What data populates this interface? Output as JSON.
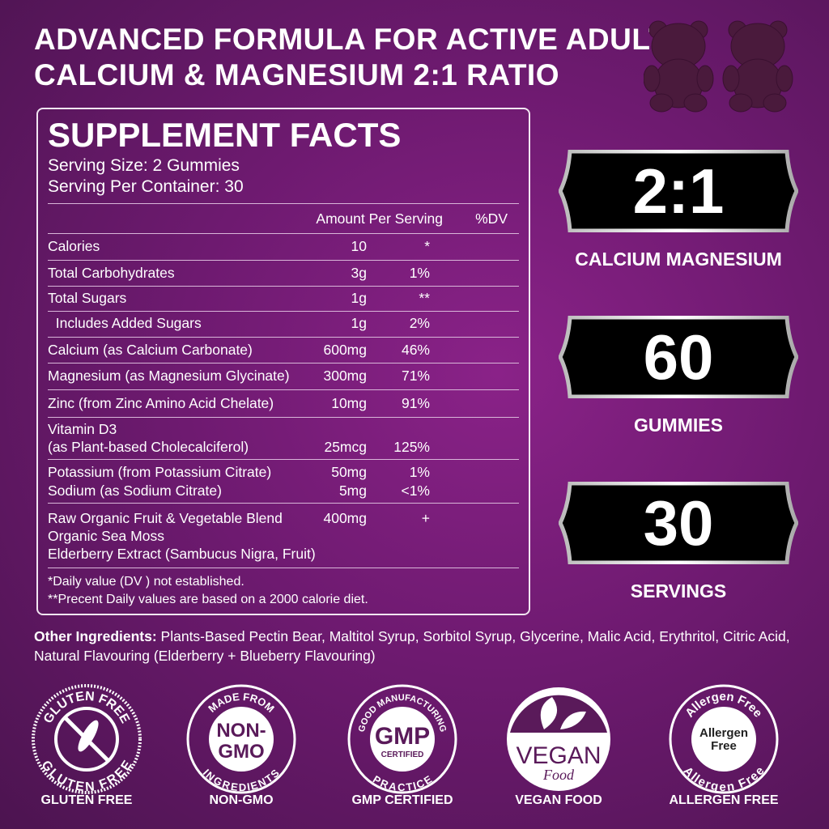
{
  "headline": [
    "ADVANCED FORMULA FOR ACTIVE ADULTS",
    "CALCIUM & MAGNESIUM 2:1 RATIO"
  ],
  "facts": {
    "title": "SUPPLEMENT FACTS",
    "serving_size": "Serving Size: 2 Gummies",
    "servings_per_container": "Serving Per Container: 30",
    "col_amount": "Amount Per Serving",
    "col_dv": "%DV",
    "rows": [
      {
        "name": "Calories",
        "amount": "10",
        "dv": "*"
      },
      {
        "name": "Total Carbohydrates",
        "amount": "3g",
        "dv": "1%"
      },
      {
        "name": "Total Sugars",
        "amount": "1g",
        "dv": "**"
      },
      {
        "name": "  Includes Added Sugars",
        "amount": "1g",
        "dv": "2%"
      },
      {
        "name": "Calcium (as Calcium Carbonate)",
        "amount": "600mg",
        "dv": "46%"
      },
      {
        "name": "Magnesium (as Magnesium Glycinate)",
        "amount": "300mg",
        "dv": "71%"
      },
      {
        "name": "Zinc (from Zinc Amino Acid Chelate)",
        "amount": "10mg",
        "dv": "91%"
      },
      {
        "name": "Vitamin D3",
        "amount": "",
        "dv": ""
      },
      {
        "name": "(as Plant-based Cholecalciferol)",
        "amount": "25mcg",
        "dv": "125%"
      },
      {
        "name": "Potassium (from Potassium Citrate)",
        "amount": "50mg",
        "dv": "1%"
      },
      {
        "name": "Sodium (as Sodium Citrate)",
        "amount": "5mg",
        "dv": "<1%"
      },
      {
        "name": "Raw Organic Fruit & Vegetable Blend",
        "amount": "400mg",
        "dv": "+"
      },
      {
        "name": "Organic Sea Moss",
        "amount": "",
        "dv": ""
      },
      {
        "name": "Elderberry Extract (Sambucus Nigra, Fruit)",
        "amount": "",
        "dv": ""
      }
    ],
    "footnotes": [
      "*Daily value (DV ) not established.",
      "**Precent Daily values are based  on a 2000 calorie diet."
    ]
  },
  "highlights": [
    {
      "value": "2:1",
      "label": "CALCIUM MAGNESIUM"
    },
    {
      "value": "60",
      "label": "GUMMIES"
    },
    {
      "value": "30",
      "label": "SERVINGS"
    }
  ],
  "other_ingredients": {
    "label": "Other Ingredients:",
    "text": " Plants-Based Pectin Bear, Maltitol Syrup, Sorbitol Syrup, Glycerine, Malic Acid, Erythritol, Citric Acid, Natural Flavouring (Elderberry + Blueberry Flavouring)"
  },
  "badges": [
    {
      "label": "GLUTEN FREE",
      "logo_text": [
        "GLUTEN FREE",
        "GLUTEN FREE"
      ]
    },
    {
      "label": "NON-GMO",
      "logo_text": [
        "MADE FROM",
        "INGREDIENTS",
        "NON-",
        "GMO"
      ]
    },
    {
      "label": "GMP CERTIFIED",
      "logo_text": [
        "GOOD MANUFACTURING",
        "PRACTICE",
        "GMP",
        "CERTIFIED"
      ]
    },
    {
      "label": "VEGAN FOOD",
      "logo_text": [
        "VEGAN",
        "Food"
      ]
    },
    {
      "label": "ALLERGEN FREE",
      "logo_text": [
        "Allergen Free",
        "Allergen Free",
        "Allergen",
        "Free"
      ]
    }
  ],
  "colors": {
    "background": "#6e1a70",
    "plaque": "#000000",
    "gummy": "#4a1a3c"
  }
}
